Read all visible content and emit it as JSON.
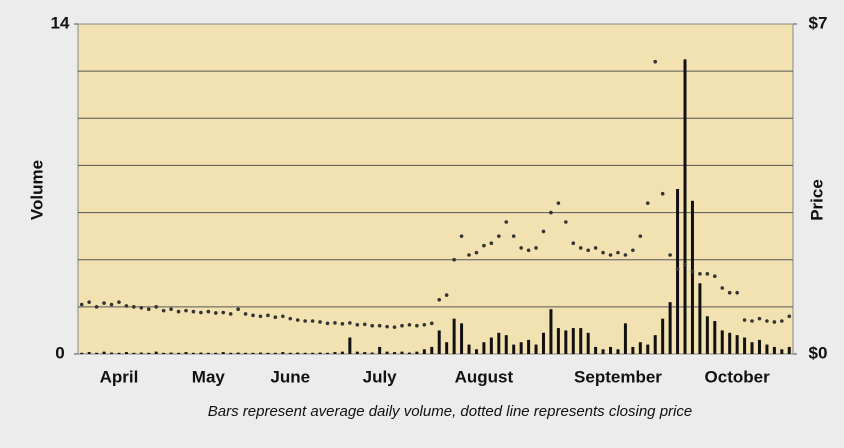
{
  "chart_data": {
    "type": "bar-line",
    "caption": "Bars represent average daily volume, dotted line represents closing price",
    "y_label": "Volume",
    "y2_label": "Price",
    "categories": [
      null,
      null,
      null,
      null,
      null,
      "April",
      null,
      null,
      null,
      null,
      null,
      null,
      null,
      null,
      null,
      null,
      null,
      "May",
      null,
      null,
      null,
      null,
      null,
      null,
      null,
      null,
      null,
      null,
      "June",
      null,
      null,
      null,
      null,
      null,
      null,
      null,
      null,
      null,
      null,
      null,
      "July",
      null,
      null,
      null,
      null,
      null,
      null,
      null,
      null,
      null,
      null,
      null,
      null,
      null,
      "August",
      null,
      null,
      null,
      null,
      null,
      null,
      null,
      null,
      null,
      null,
      null,
      null,
      null,
      null,
      null,
      null,
      null,
      "September",
      null,
      null,
      null,
      null,
      null,
      null,
      null,
      null,
      null,
      null,
      null,
      null,
      null,
      null,
      null,
      "October",
      null,
      null,
      null,
      null,
      null,
      null,
      null
    ],
    "series": [
      {
        "name": "Volume",
        "color": "#111111",
        "axis": "y",
        "values": [
          0.05,
          0.08,
          0.05,
          0.1,
          0.06,
          0.05,
          0.08,
          0.05,
          0.06,
          0.05,
          0.1,
          0.05,
          0.06,
          0.05,
          0.08,
          0.05,
          0.06,
          0.05,
          0.05,
          0.08,
          0.05,
          0.06,
          0.05,
          0.05,
          0.06,
          0.05,
          0.05,
          0.08,
          0.05,
          0.06,
          0.05,
          0.05,
          0.06,
          0.05,
          0.08,
          0.1,
          0.7,
          0.1,
          0.08,
          0.06,
          0.3,
          0.1,
          0.08,
          0.1,
          0.06,
          0.1,
          0.2,
          0.3,
          1.0,
          0.5,
          1.5,
          1.3,
          0.4,
          0.2,
          0.5,
          0.7,
          0.9,
          0.8,
          0.4,
          0.5,
          0.6,
          0.4,
          0.9,
          1.9,
          1.1,
          1.0,
          1.1,
          1.1,
          0.9,
          0.3,
          0.2,
          0.3,
          0.2,
          1.3,
          0.3,
          0.5,
          0.4,
          0.8,
          1.5,
          2.2,
          7.0,
          12.5,
          6.5,
          3.0,
          1.6,
          1.4,
          1.0,
          0.9,
          0.8,
          0.7,
          0.5,
          0.6,
          0.4,
          0.3,
          0.2,
          0.3
        ]
      },
      {
        "name": "Closing price",
        "color": "#333333",
        "axis": "y2",
        "values": [
          1.05,
          1.1,
          1.0,
          1.08,
          1.05,
          1.1,
          1.02,
          1.0,
          0.98,
          0.95,
          1.0,
          0.92,
          0.95,
          0.9,
          0.92,
          0.9,
          0.88,
          0.9,
          0.87,
          0.88,
          0.85,
          0.95,
          0.85,
          0.82,
          0.8,
          0.82,
          0.78,
          0.8,
          0.75,
          0.72,
          0.7,
          0.7,
          0.68,
          0.65,
          0.66,
          0.64,
          0.66,
          0.62,
          0.63,
          0.6,
          0.6,
          0.58,
          0.57,
          0.6,
          0.62,
          0.6,
          0.62,
          0.65,
          1.15,
          1.25,
          2.0,
          2.5,
          2.1,
          2.15,
          2.3,
          2.35,
          2.5,
          2.8,
          2.5,
          2.25,
          2.2,
          2.25,
          2.6,
          3.0,
          3.2,
          2.8,
          2.35,
          2.25,
          2.2,
          2.25,
          2.15,
          2.1,
          2.15,
          2.1,
          2.2,
          2.5,
          3.2,
          6.2,
          3.4,
          2.1,
          1.8,
          1.9,
          1.75,
          1.7,
          1.7,
          1.65,
          1.4,
          1.3,
          1.3,
          0.72,
          0.7,
          0.75,
          0.7,
          0.68,
          0.7,
          0.8
        ]
      }
    ],
    "ylim": [
      0,
      14
    ],
    "yticks": [
      0,
      14
    ],
    "y2lim": [
      0,
      7
    ],
    "y2ticks": [
      {
        "value": 0,
        "label": "$0"
      },
      {
        "value": 7,
        "label": "$7"
      }
    ],
    "ygrid": [
      2,
      4,
      6,
      8,
      10,
      12
    ],
    "plot_color": "#f2e2b2"
  }
}
